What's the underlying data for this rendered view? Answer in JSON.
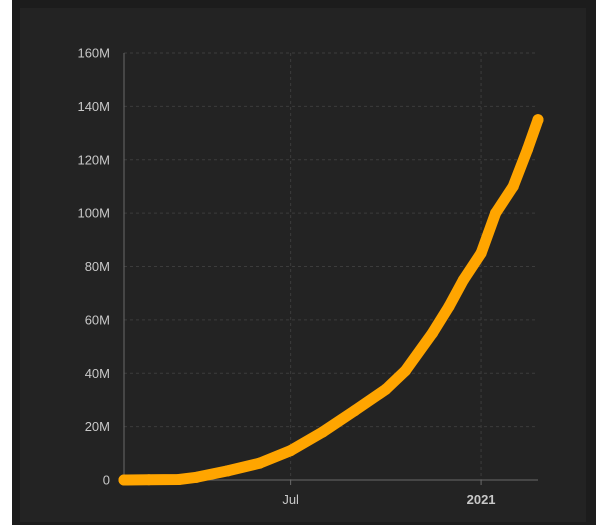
{
  "chart_data": {
    "type": "line",
    "title": "",
    "xlabel": "",
    "ylabel": "",
    "y_ticks": [
      "0",
      "20M",
      "40M",
      "60M",
      "80M",
      "100M",
      "120M",
      "140M",
      "160M"
    ],
    "x_ticks": [
      {
        "label": "Jul",
        "date": "2020-07-01",
        "bold": false
      },
      {
        "label": "2021",
        "date": "2021-01-01",
        "bold": true
      }
    ],
    "ylim": [
      0,
      160000000
    ],
    "xlim": [
      "2020-01-22",
      "2021-02-25"
    ],
    "grid": true,
    "series": [
      {
        "color": "#ffa500",
        "points": [
          {
            "x": "2020-01-22",
            "y": 0
          },
          {
            "x": "2020-02-15",
            "y": 100000
          },
          {
            "x": "2020-03-15",
            "y": 200000
          },
          {
            "x": "2020-04-01",
            "y": 1000000
          },
          {
            "x": "2020-05-01",
            "y": 3400000
          },
          {
            "x": "2020-06-01",
            "y": 6300000
          },
          {
            "x": "2020-07-01",
            "y": 11000000
          },
          {
            "x": "2020-08-01",
            "y": 18000000
          },
          {
            "x": "2020-09-01",
            "y": 26000000
          },
          {
            "x": "2020-10-01",
            "y": 34000000
          },
          {
            "x": "2020-10-20",
            "y": 41000000
          },
          {
            "x": "2020-11-15",
            "y": 55000000
          },
          {
            "x": "2020-12-01",
            "y": 65000000
          },
          {
            "x": "2020-12-15",
            "y": 75000000
          },
          {
            "x": "2021-01-01",
            "y": 85000000
          },
          {
            "x": "2021-01-15",
            "y": 100000000
          },
          {
            "x": "2021-02-01",
            "y": 110000000
          },
          {
            "x": "2021-02-15",
            "y": 124000000
          },
          {
            "x": "2021-02-25",
            "y": 135000000
          }
        ]
      }
    ]
  }
}
